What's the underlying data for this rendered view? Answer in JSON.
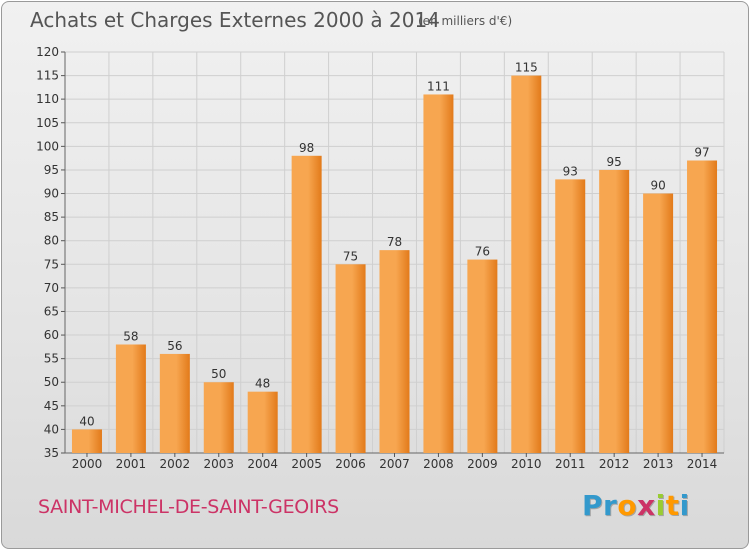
{
  "title": "Achats et Charges Externes 2000 à 2014",
  "unit_note": "(en milliers d'€)",
  "city": "SAINT-MICHEL-DE-SAINT-GEOIRS",
  "logo": {
    "letters": [
      "P",
      "r",
      "o",
      "x",
      "i",
      "t",
      "i"
    ],
    "colors": [
      "#3399cc",
      "#3399cc",
      "#ff9900",
      "#cc3366",
      "#99cc33",
      "#ff9900",
      "#3399cc"
    ]
  },
  "colors": {
    "bar_light": "#f7a650",
    "bar_dark": "#e27a1a",
    "grid": "#cfcfcf",
    "axis_text": "#333333",
    "city": "#cc3366"
  },
  "chart_data": {
    "type": "bar",
    "categories": [
      "2000",
      "2001",
      "2002",
      "2003",
      "2004",
      "2005",
      "2006",
      "2007",
      "2008",
      "2009",
      "2010",
      "2011",
      "2012",
      "2013",
      "2014"
    ],
    "values": [
      40,
      58,
      56,
      50,
      48,
      98,
      75,
      78,
      111,
      76,
      115,
      93,
      95,
      90,
      97
    ],
    "ylim": [
      35,
      120
    ],
    "yticks": [
      35,
      40,
      45,
      50,
      55,
      60,
      65,
      70,
      75,
      80,
      85,
      90,
      95,
      100,
      105,
      110,
      115,
      120
    ],
    "grid": true,
    "data_labels": true
  }
}
